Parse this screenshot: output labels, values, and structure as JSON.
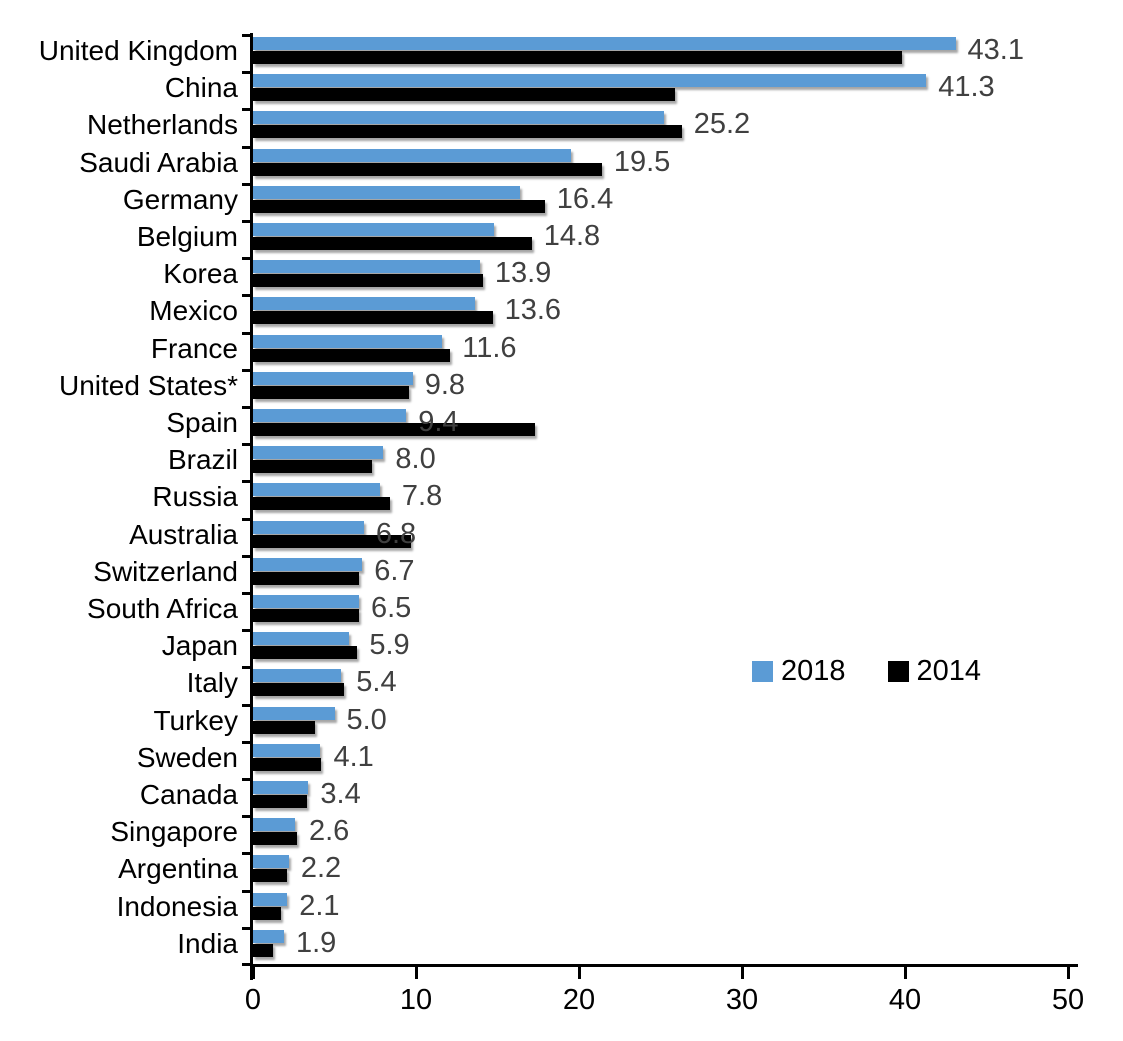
{
  "chart_data": {
    "type": "bar",
    "orientation": "horizontal",
    "title": "",
    "xlabel": "",
    "ylabel": "",
    "categories": [
      "United Kingdom",
      "China",
      "Netherlands",
      "Saudi Arabia",
      "Germany",
      "Belgium",
      "Korea",
      "Mexico",
      "France",
      "United States*",
      "Spain",
      "Brazil",
      "Russia",
      "Australia",
      "Switzerland",
      "South Africa",
      "Japan",
      "Italy",
      "Turkey",
      "Sweden",
      "Canada",
      "Singapore",
      "Argentina",
      "Indonesia",
      "India"
    ],
    "series": [
      {
        "name": "2018",
        "color": "#5B9BD5",
        "values": [
          43.1,
          41.3,
          25.2,
          19.5,
          16.4,
          14.8,
          13.9,
          13.6,
          11.6,
          9.8,
          9.4,
          8.0,
          7.8,
          6.8,
          6.7,
          6.5,
          5.9,
          5.4,
          5.0,
          4.1,
          3.4,
          2.6,
          2.2,
          2.1,
          1.9
        ],
        "data_labels": [
          "43.1",
          "41.3",
          "25.2",
          "19.5",
          "16.4",
          "14.8",
          "13.9",
          "13.6",
          "11.6",
          "9.8",
          "9.4",
          "8.0",
          "7.8",
          "6.8",
          "6.7",
          "6.5",
          "5.9",
          "5.4",
          "5.0",
          "4.1",
          "3.4",
          "2.6",
          "2.2",
          "2.1",
          "1.9"
        ]
      },
      {
        "name": "2014",
        "color": "#000000",
        "values": [
          39.8,
          25.9,
          26.3,
          21.4,
          17.9,
          17.1,
          14.1,
          14.7,
          12.1,
          9.6,
          17.3,
          7.3,
          8.4,
          9.7,
          6.5,
          6.5,
          6.4,
          5.6,
          3.8,
          4.2,
          3.3,
          2.7,
          2.1,
          1.7,
          1.2
        ]
      }
    ],
    "xlim": [
      0,
      50
    ],
    "x_ticks": [
      0,
      10,
      20,
      30,
      40,
      50
    ],
    "grid": false,
    "legend": {
      "position": "center-right",
      "items": [
        "2018",
        "2014"
      ]
    },
    "value_label_color": "#404040",
    "axis_color": "#000000"
  }
}
